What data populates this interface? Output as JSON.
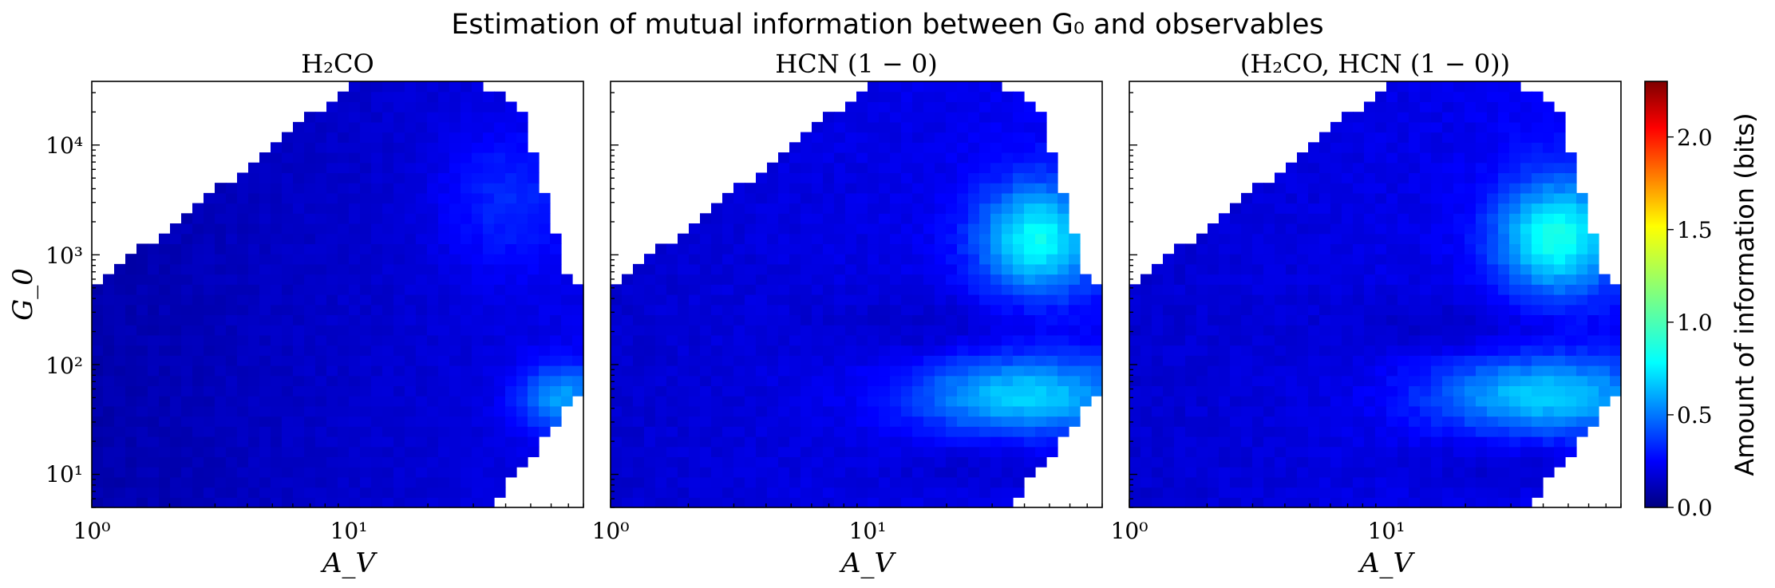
{
  "figure": {
    "title": "Estimation of mutual information between G₀ and observables"
  },
  "colorbar": {
    "label": "Amount of information (bits)",
    "range": [
      0.0,
      2.3
    ],
    "ticks": [
      "0.0",
      "0.5",
      "1.0",
      "1.5",
      "2.0"
    ],
    "tick_values": [
      0.0,
      0.5,
      1.0,
      1.5,
      2.0
    ],
    "colormap": "jet"
  },
  "axes": {
    "x_label": "A_V",
    "y_label": "G_0",
    "x_scale": "log",
    "y_scale": "log",
    "x_range": [
      1,
      80
    ],
    "y_range": [
      5,
      38000
    ],
    "x_tick_labels": [
      "10⁰",
      "10¹"
    ],
    "x_tick_values": [
      1,
      10
    ],
    "y_tick_labels": [
      "10¹",
      "10²",
      "10³",
      "10⁴"
    ],
    "y_tick_values": [
      10,
      100,
      1000,
      10000
    ]
  },
  "chart_data": [
    {
      "type": "heatmap",
      "title": "H₂CO",
      "xlabel": "A_V",
      "ylabel": "G_0",
      "grid": false,
      "value_unit": "bits",
      "features": {
        "background_level": 0.12,
        "top_right_band": {
          "A_V": [
            25,
            70
          ],
          "G_0": [
            1000,
            10000
          ],
          "level": 0.32
        },
        "low_G0_hotspot": {
          "A_V": [
            40,
            80
          ],
          "G_0": [
            30,
            80
          ],
          "level": 0.55
        }
      },
      "peak_value": 0.6
    },
    {
      "type": "heatmap",
      "title": "HCN (1 − 0)",
      "xlabel": "A_V",
      "ylabel": "G_0",
      "grid": false,
      "value_unit": "bits",
      "features": {
        "background_level": 0.2,
        "high_G0_hotspot": {
          "A_V": [
            30,
            60
          ],
          "G_0": [
            800,
            4000
          ],
          "level": 0.85
        },
        "low_G0_band": {
          "A_V": [
            15,
            80
          ],
          "G_0": [
            20,
            80
          ],
          "level": 0.65
        }
      },
      "peak_value": 0.85
    },
    {
      "type": "heatmap",
      "title": "(H₂CO, HCN (1 − 0))",
      "xlabel": "A_V",
      "ylabel": "",
      "grid": false,
      "value_unit": "bits",
      "features": {
        "background_level": 0.22,
        "high_G0_hotspot": {
          "A_V": [
            30,
            65
          ],
          "G_0": [
            800,
            6000
          ],
          "level": 0.82
        },
        "low_G0_band": {
          "A_V": [
            15,
            80
          ],
          "G_0": [
            20,
            80
          ],
          "level": 0.75
        }
      },
      "peak_value": 0.85
    }
  ]
}
